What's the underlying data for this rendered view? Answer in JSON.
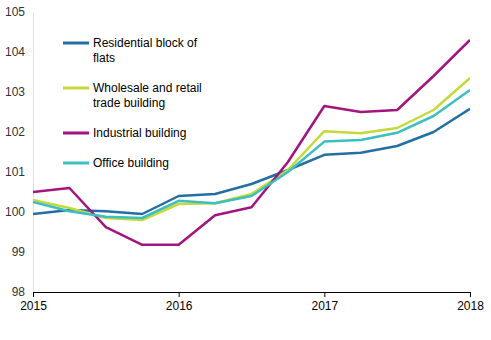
{
  "chart_data": {
    "type": "line",
    "x": [
      2015,
      2015.25,
      2015.5,
      2015.75,
      2016,
      2016.25,
      2016.5,
      2016.75,
      2017,
      2017.25,
      2017.5,
      2017.75,
      2018
    ],
    "xlim": [
      2015,
      2018
    ],
    "xticks": [
      2015,
      2016,
      2017,
      2018
    ],
    "ylim": [
      98,
      105
    ],
    "yticks": [
      98,
      99,
      100,
      101,
      102,
      103,
      104,
      105
    ],
    "grid": false,
    "legend": "upper left",
    "series": [
      {
        "name": "Residential block of flats",
        "color": "#236fa3",
        "values": [
          99.95,
          100.05,
          100.02,
          99.95,
          100.4,
          100.45,
          100.7,
          101.05,
          101.43,
          101.48,
          101.65,
          102.0,
          102.58
        ]
      },
      {
        "name": "Wholesale and retail trade building",
        "color": "#c5d93a",
        "values": [
          100.3,
          100.1,
          99.85,
          99.8,
          100.2,
          100.22,
          100.45,
          101.05,
          102.02,
          101.97,
          102.1,
          102.55,
          103.35
        ]
      },
      {
        "name": "Industrial building",
        "color": "#a2157f",
        "values": [
          100.5,
          100.6,
          99.62,
          99.18,
          99.18,
          99.92,
          100.12,
          101.25,
          102.65,
          102.5,
          102.55,
          103.4,
          104.3
        ]
      },
      {
        "name": "Office building",
        "color": "#3bbfc0",
        "values": [
          100.25,
          100.02,
          99.88,
          99.85,
          100.28,
          100.22,
          100.4,
          101.0,
          101.76,
          101.8,
          101.98,
          102.4,
          103.05
        ]
      }
    ]
  }
}
